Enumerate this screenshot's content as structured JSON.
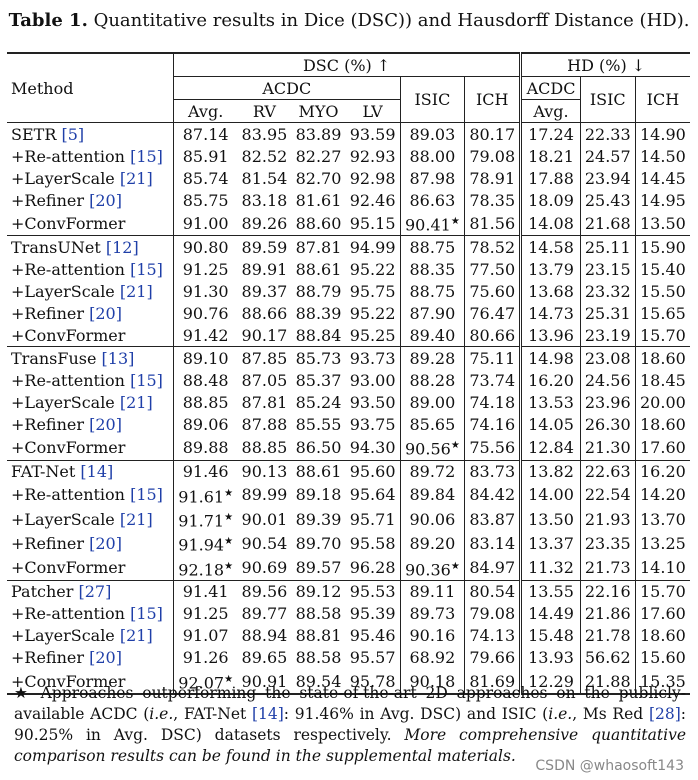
{
  "caption": {
    "label": "Table 1.",
    "text": " Quantitative results in Dice (DSC)) and Hausdorff Distance (HD)."
  },
  "header": {
    "method": "Method",
    "dsc": "DSC (%) ↑",
    "hd": "HD (%) ↓",
    "acdc": "ACDC",
    "isic": "ISIC",
    "ich": "ICH",
    "avg": "Avg.",
    "rv": "RV",
    "myo": "MYO",
    "lv": "LV",
    "hd_acdc": "ACDC",
    "hd_avg": "Avg.",
    "hd_isic": "ISIC",
    "hd_ich": "ICH"
  },
  "groups": [
    {
      "rows": [
        {
          "m": "SETR ",
          "c": "[5]",
          "v": [
            "87.14",
            "83.95",
            "83.89",
            "93.59",
            "89.03",
            "80.17",
            "17.24",
            "22.33",
            "14.90"
          ],
          "s": [],
          "b": []
        },
        {
          "m": "+Re-attention ",
          "c": "[15]",
          "v": [
            "85.91",
            "82.52",
            "82.27",
            "92.93",
            "88.00",
            "79.08",
            "18.21",
            "24.57",
            "14.50"
          ],
          "s": [],
          "b": []
        },
        {
          "m": "+LayerScale ",
          "c": "[21]",
          "v": [
            "85.74",
            "81.54",
            "82.70",
            "92.98",
            "87.98",
            "78.91",
            "17.88",
            "23.94",
            "14.45"
          ],
          "s": [],
          "b": []
        },
        {
          "m": "+Refiner ",
          "c": "[20]",
          "v": [
            "85.75",
            "83.18",
            "81.61",
            "92.46",
            "86.63",
            "78.35",
            "18.09",
            "25.43",
            "14.95"
          ],
          "s": [],
          "b": []
        },
        {
          "m": "+ConvFormer",
          "c": "",
          "v": [
            "91.00",
            "89.26",
            "88.60",
            "95.15",
            "90.41",
            "81.56",
            "14.08",
            "21.68",
            "13.50"
          ],
          "s": [
            4
          ],
          "b": [
            0,
            1,
            2,
            3,
            4,
            5,
            6,
            7,
            8
          ]
        }
      ]
    },
    {
      "rows": [
        {
          "m": "TransUNet ",
          "c": "[12]",
          "v": [
            "90.80",
            "89.59",
            "87.81",
            "94.99",
            "88.75",
            "78.52",
            "14.58",
            "25.11",
            "15.90"
          ],
          "s": [],
          "b": []
        },
        {
          "m": "+Re-attention ",
          "c": "[15]",
          "v": [
            "91.25",
            "89.91",
            "88.61",
            "95.22",
            "88.35",
            "77.50",
            "13.79",
            "23.15",
            "15.40"
          ],
          "s": [],
          "b": [
            7,
            8
          ]
        },
        {
          "m": "+LayerScale ",
          "c": "[21]",
          "v": [
            "91.30",
            "89.37",
            "88.79",
            "95.75",
            "88.75",
            "75.60",
            "13.68",
            "23.32",
            "15.50"
          ],
          "s": [],
          "b": [
            3,
            6
          ]
        },
        {
          "m": "+Refiner ",
          "c": "[20]",
          "v": [
            "90.76",
            "88.66",
            "88.39",
            "95.22",
            "87.90",
            "76.47",
            "14.73",
            "25.31",
            "15.65"
          ],
          "s": [],
          "b": []
        },
        {
          "m": "+ConvFormer",
          "c": "",
          "v": [
            "91.42",
            "90.17",
            "88.84",
            "95.25",
            "89.40",
            "80.66",
            "13.96",
            "23.19",
            "15.70"
          ],
          "s": [],
          "b": [
            0,
            1,
            2,
            4,
            5
          ]
        }
      ]
    },
    {
      "rows": [
        {
          "m": "TransFuse ",
          "c": "[13]",
          "v": [
            "89.10",
            "87.85",
            "85.73",
            "93.73",
            "89.28",
            "75.11",
            "14.98",
            "23.08",
            "18.60"
          ],
          "s": [],
          "b": []
        },
        {
          "m": "+Re-attention ",
          "c": "[15]",
          "v": [
            "88.48",
            "87.05",
            "85.37",
            "93.00",
            "88.28",
            "73.74",
            "16.20",
            "24.56",
            "18.45"
          ],
          "s": [],
          "b": []
        },
        {
          "m": "+LayerScale ",
          "c": "[21]",
          "v": [
            "88.85",
            "87.81",
            "85.24",
            "93.50",
            "89.00",
            "74.18",
            "13.53",
            "23.96",
            "20.00"
          ],
          "s": [],
          "b": []
        },
        {
          "m": "+Refiner ",
          "c": "[20]",
          "v": [
            "89.06",
            "87.88",
            "85.55",
            "93.75",
            "85.65",
            "74.16",
            "14.05",
            "26.30",
            "18.60"
          ],
          "s": [],
          "b": []
        },
        {
          "m": "+ConvFormer",
          "c": "",
          "v": [
            "89.88",
            "88.85",
            "86.50",
            "94.30",
            "90.56",
            "75.56",
            "12.84",
            "21.30",
            "17.60"
          ],
          "s": [
            4
          ],
          "b": [
            0,
            1,
            2,
            3,
            4,
            5,
            6,
            7,
            8
          ]
        }
      ]
    },
    {
      "rows": [
        {
          "m": "FAT-Net ",
          "c": "[14]",
          "v": [
            "91.46",
            "90.13",
            "88.61",
            "95.60",
            "89.72",
            "83.73",
            "13.82",
            "22.63",
            "16.20"
          ],
          "s": [],
          "b": []
        },
        {
          "m": "+Re-attention ",
          "c": "[15]",
          "v": [
            "91.61",
            "89.99",
            "89.18",
            "95.64",
            "89.84",
            "84.42",
            "14.00",
            "22.54",
            "14.20"
          ],
          "s": [
            0
          ],
          "b": []
        },
        {
          "m": "+LayerScale ",
          "c": "[21]",
          "v": [
            "91.71",
            "90.01",
            "89.39",
            "95.71",
            "90.06",
            "83.87",
            "13.50",
            "21.93",
            "13.70"
          ],
          "s": [
            0
          ],
          "b": []
        },
        {
          "m": "+Refiner ",
          "c": "[20]",
          "v": [
            "91.94",
            "90.54",
            "89.70",
            "95.58",
            "89.20",
            "83.14",
            "13.37",
            "23.35",
            "13.25"
          ],
          "s": [
            0
          ],
          "b": [
            2,
            8
          ]
        },
        {
          "m": "+ConvFormer",
          "c": "",
          "v": [
            "92.18",
            "90.69",
            "89.57",
            "96.28",
            "90.36",
            "84.97",
            "11.32",
            "21.73",
            "14.10"
          ],
          "s": [
            0,
            4
          ],
          "b": [
            0,
            1,
            3,
            4,
            5,
            6,
            7
          ]
        }
      ]
    },
    {
      "rows": [
        {
          "m": "Patcher ",
          "c": "[27]",
          "v": [
            "91.41",
            "89.56",
            "89.12",
            "95.53",
            "89.11",
            "80.54",
            "13.55",
            "22.16",
            "15.70"
          ],
          "s": [],
          "b": []
        },
        {
          "m": "+Re-attention ",
          "c": "[15]",
          "v": [
            "91.25",
            "89.77",
            "88.58",
            "95.39",
            "89.73",
            "79.08",
            "14.49",
            "21.86",
            "17.60"
          ],
          "s": [],
          "b": []
        },
        {
          "m": "+LayerScale ",
          "c": "[21]",
          "v": [
            "91.07",
            "88.94",
            "88.81",
            "95.46",
            "90.16",
            "74.13",
            "15.48",
            "21.78",
            "18.60"
          ],
          "s": [],
          "b": [
            7
          ]
        },
        {
          "m": "+Refiner ",
          "c": "[20]",
          "v": [
            "91.26",
            "89.65",
            "88.58",
            "95.57",
            "68.92",
            "79.66",
            "13.93",
            "56.62",
            "15.60"
          ],
          "s": [],
          "b": []
        },
        {
          "m": "+ConvFormer",
          "c": "",
          "v": [
            "92.07",
            "90.91",
            "89.54",
            "95.78",
            "90.18",
            "81.69",
            "12.29",
            "21.88",
            "15.35"
          ],
          "s": [
            0
          ],
          "b": [
            0,
            1,
            2,
            3,
            4,
            5,
            6,
            8
          ]
        }
      ]
    }
  ],
  "star": "★",
  "footnote": {
    "p1": " Approaches outperforming the state-of-the-art 2D approaches on the publicly-available ACDC (",
    "ie1": "i.e.",
    "p2": ", FAT-Net ",
    "c1": "[14]",
    "p3": ": 91.46% in Avg. DSC) and ISIC (",
    "ie2": "i.e.",
    "p4": ", Ms Red ",
    "c2": "[28]",
    "p5": ": 90.25% in Avg. DSC) datasets respectively. ",
    "it": "More comprehensive quantitative comparison results can be found in the supplemental materials."
  },
  "watermark": "CSDN @whaosoft143"
}
